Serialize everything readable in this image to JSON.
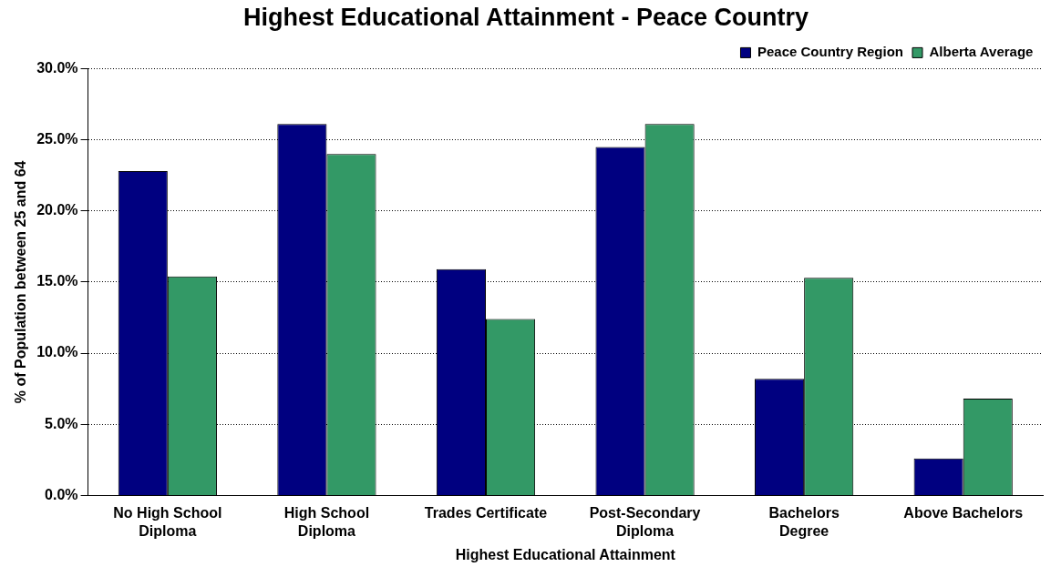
{
  "chart_data": {
    "type": "bar",
    "title": "Highest Educational Attainment - Peace Country",
    "xlabel": "Highest Educational Attainment",
    "ylabel": "% of Population between 25 and 64",
    "categories": [
      "No High School Diploma",
      "High School Diploma",
      "Trades Certificate",
      "Post-Secondary Diploma",
      "Bachelors Degree",
      "Above Bachelors"
    ],
    "series": [
      {
        "name": "Peace Country Region",
        "color": "#000080",
        "values": [
          22.8,
          26.1,
          15.9,
          24.5,
          8.2,
          2.6
        ]
      },
      {
        "name": "Alberta Average",
        "color": "#339966",
        "values": [
          15.4,
          24.0,
          12.4,
          26.1,
          15.3,
          6.8
        ]
      }
    ],
    "ylim": [
      0,
      30
    ],
    "yticks": [
      {
        "value": 0,
        "label": "0.0%"
      },
      {
        "value": 5,
        "label": "5.0%"
      },
      {
        "value": 10,
        "label": "10.0%"
      },
      {
        "value": 15,
        "label": "15.0%"
      },
      {
        "value": 20,
        "label": "20.0%"
      },
      {
        "value": 25,
        "label": "25.0%"
      },
      {
        "value": 30,
        "label": "30.0%"
      }
    ],
    "grid": "y",
    "legend": "top right"
  }
}
